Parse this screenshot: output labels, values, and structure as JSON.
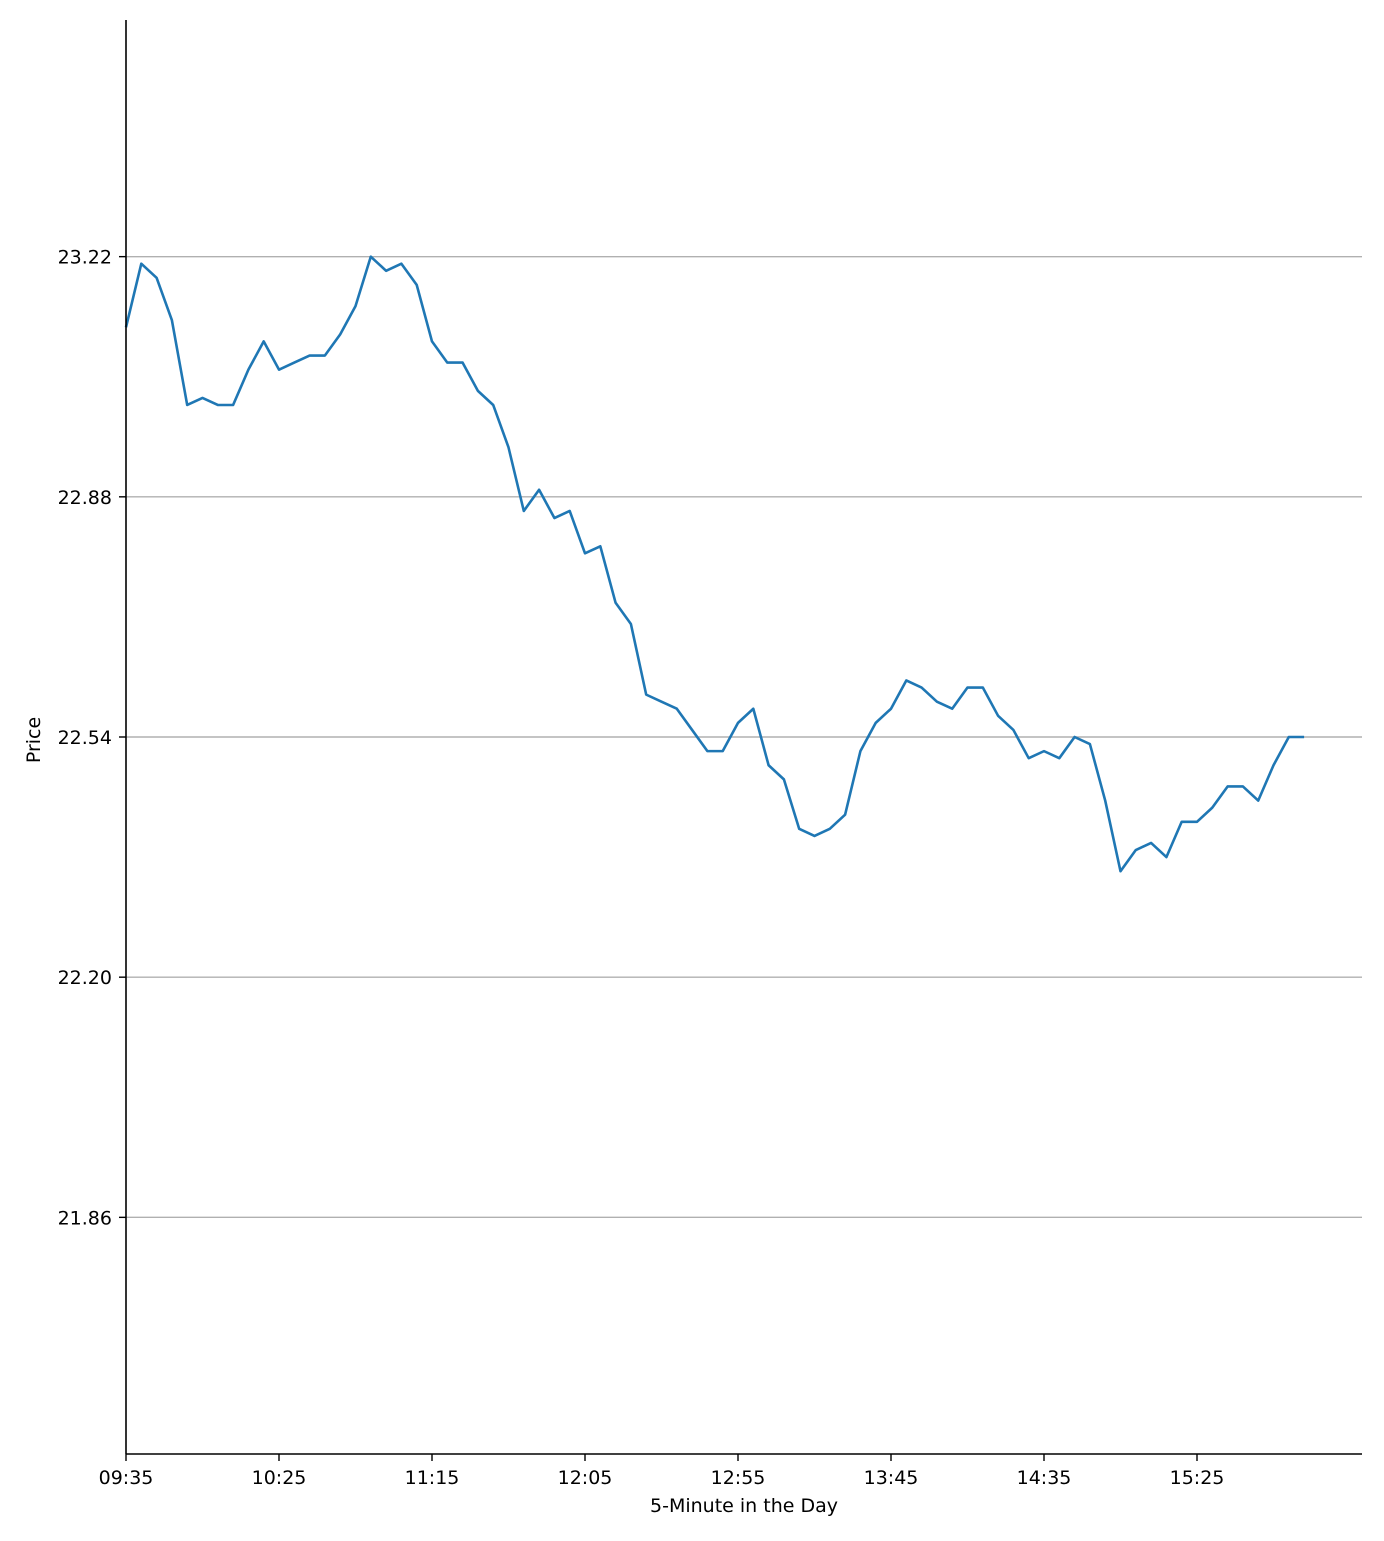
{
  "chart_data": {
    "type": "line",
    "title": "",
    "xlabel": "5-Minute in the Day",
    "ylabel": "Price",
    "ylim": [
      21.525,
      23.555
    ],
    "yticks": [
      21.86,
      22.2,
      22.54,
      22.88,
      23.22
    ],
    "ytick_labels": [
      "21.86",
      "22.20",
      "22.54",
      "22.88",
      "23.22"
    ],
    "xtick_labels": [
      "09:35",
      "10:25",
      "11:15",
      "12:05",
      "12:55",
      "13:45",
      "14:35",
      "15:25"
    ],
    "grid": "horizontal",
    "series": [
      {
        "color": "#1f77b4",
        "x": [
          "09:35",
          "09:40",
          "09:45",
          "09:50",
          "09:55",
          "10:00",
          "10:05",
          "10:10",
          "10:15",
          "10:20",
          "10:25",
          "10:30",
          "10:35",
          "10:40",
          "10:45",
          "10:50",
          "10:55",
          "11:00",
          "11:05",
          "11:10",
          "11:15",
          "11:20",
          "11:25",
          "11:30",
          "11:35",
          "11:40",
          "11:45",
          "11:50",
          "11:55",
          "12:00",
          "12:05",
          "12:10",
          "12:15",
          "12:20",
          "12:25",
          "12:30",
          "12:35",
          "12:40",
          "12:45",
          "12:50",
          "12:55",
          "13:00",
          "13:05",
          "13:10",
          "13:15",
          "13:20",
          "13:25",
          "13:30",
          "13:35",
          "13:40",
          "13:45",
          "13:50",
          "13:55",
          "14:00",
          "14:05",
          "14:10",
          "14:15",
          "14:20",
          "14:25",
          "14:30",
          "14:35",
          "14:40",
          "14:45",
          "14:50",
          "14:55",
          "15:00",
          "15:05",
          "15:10",
          "15:15",
          "15:20",
          "15:25",
          "15:30",
          "15:35",
          "15:40",
          "15:45",
          "15:50",
          "15:55",
          "16:00"
        ],
        "values": [
          23.12,
          23.21,
          23.19,
          23.13,
          23.01,
          23.02,
          23.01,
          23.01,
          23.06,
          23.1,
          23.06,
          23.07,
          23.08,
          23.08,
          23.11,
          23.15,
          23.22,
          23.2,
          23.21,
          23.18,
          23.1,
          23.07,
          23.07,
          23.03,
          23.01,
          22.95,
          22.86,
          22.89,
          22.85,
          22.86,
          22.8,
          22.81,
          22.73,
          22.7,
          22.6,
          22.59,
          22.58,
          22.55,
          22.52,
          22.52,
          22.56,
          22.58,
          22.5,
          22.48,
          22.41,
          22.4,
          22.41,
          22.43,
          22.52,
          22.56,
          22.58,
          22.62,
          22.61,
          22.59,
          22.58,
          22.61,
          22.61,
          22.57,
          22.55,
          22.51,
          22.52,
          22.51,
          22.54,
          22.53,
          22.45,
          22.35,
          22.38,
          22.39,
          22.37,
          22.42,
          22.42,
          22.44,
          22.47,
          22.47,
          22.45,
          22.5,
          22.54,
          22.54
        ]
      }
    ]
  }
}
